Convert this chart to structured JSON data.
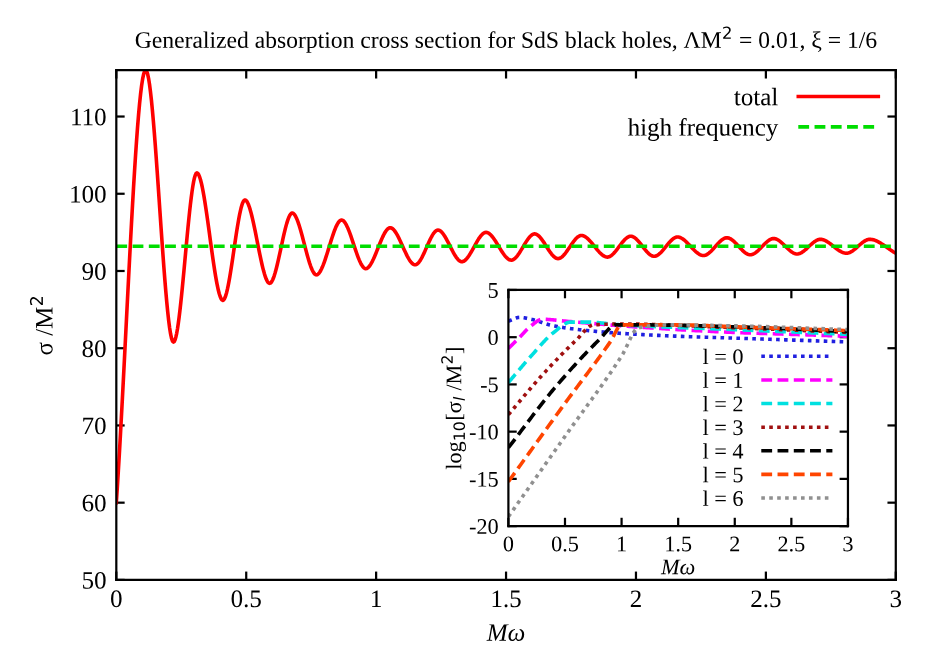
{
  "chart_data": [
    {
      "type": "line",
      "title": "Generalized absorption cross section for SdS black holes, ΛM$^{2}$ = 0.01, ξ = 1/6",
      "xlabel": "Mω",
      "ylabel": "σ /M$^{2}$",
      "xlim": [
        0,
        3
      ],
      "ylim": [
        50,
        116
      ],
      "xticks": [
        0,
        0.5,
        1,
        1.5,
        2,
        2.5,
        3
      ],
      "yticks": [
        50,
        60,
        70,
        80,
        90,
        100,
        110
      ],
      "legend": "top right",
      "grid": false,
      "series": [
        {
          "name": "total",
          "color": "#ff0000",
          "line_style": "solid",
          "x": [
            0,
            0.113,
            0.22,
            0.31,
            0.41,
            0.495,
            0.59,
            0.677,
            0.77,
            0.867,
            0.96,
            1.054,
            1.15,
            1.238,
            1.33,
            1.423,
            1.52,
            1.61,
            1.7,
            1.79,
            1.89,
            1.98,
            2.07,
            2.16,
            2.26,
            2.35,
            2.44,
            2.53,
            2.62,
            2.71,
            2.81,
            2.9,
            3.0
          ],
          "values": [
            60,
            116,
            80.8,
            102.7,
            86.2,
            99.2,
            88.4,
            97.5,
            89.5,
            96.6,
            90.3,
            95.6,
            90.8,
            95.3,
            91.2,
            95.0,
            91.4,
            94.8,
            91.6,
            94.6,
            91.8,
            94.5,
            91.9,
            94.4,
            92.0,
            94.3,
            92.1,
            94.2,
            92.2,
            94.1,
            92.3,
            94.1,
            92.3
          ]
        },
        {
          "name": "high frequency",
          "color": "#00dd00",
          "line_style": "dashed",
          "x": [
            0,
            3
          ],
          "values": [
            93.2,
            93.2
          ]
        }
      ]
    },
    {
      "type": "line",
      "xlabel": "Mω",
      "ylabel": "log$_{10}$[σ$_{l}$ /M$^{2}$]",
      "xlim": [
        0,
        3
      ],
      "ylim": [
        -20,
        5
      ],
      "xticks": [
        0,
        0.5,
        1,
        1.5,
        2,
        2.5,
        3
      ],
      "yticks": [
        -20,
        -15,
        -10,
        -5,
        0,
        5
      ],
      "legend": "bottom right",
      "grid": false,
      "series": [
        {
          "name": "l = 0",
          "color": "#2020e0",
          "line_style": "dotted",
          "x": [
            0,
            0.1,
            0.2,
            0.4,
            0.7,
            1,
            1.5,
            2,
            2.5,
            3
          ],
          "values": [
            1.7,
            2.1,
            1.9,
            1.2,
            0.7,
            0.4,
            0.1,
            -0.1,
            -0.3,
            -0.5
          ]
        },
        {
          "name": "l = 1",
          "color": "#ff00ff",
          "line_style": "dashed",
          "x": [
            0,
            0.1,
            0.2,
            0.3,
            0.5,
            1,
            1.5,
            2,
            2.5,
            3
          ],
          "values": [
            -1.2,
            0,
            1.2,
            1.9,
            1.7,
            1.2,
            0.8,
            0.5,
            0.3,
            0.1
          ]
        },
        {
          "name": "l = 2",
          "color": "#00e0e0",
          "line_style": "dashed",
          "x": [
            0,
            0.2,
            0.4,
            0.55,
            0.7,
            1,
            2,
            3
          ],
          "values": [
            -4.8,
            -2,
            0.5,
            1.6,
            1.6,
            1.3,
            0.8,
            0.3
          ]
        },
        {
          "name": "l = 3",
          "color": "#a01010",
          "line_style": "dotted",
          "x": [
            0,
            0.3,
            0.6,
            0.75,
            1,
            2,
            3
          ],
          "values": [
            -8.2,
            -4,
            -0.3,
            1.3,
            1.4,
            1,
            0.5
          ]
        },
        {
          "name": "l = 4",
          "color": "#000000",
          "line_style": "dashed",
          "x": [
            0,
            0.4,
            0.8,
            0.95,
            1.2,
            2,
            3
          ],
          "values": [
            -11.7,
            -5.5,
            -0.3,
            1.3,
            1.3,
            1.1,
            0.6
          ]
        },
        {
          "name": "l = 5",
          "color": "#ff4500",
          "line_style": "dashed",
          "x": [
            0,
            0.5,
            0.9,
            1.0,
            1.5,
            2,
            3
          ],
          "values": [
            -15.3,
            -7,
            -0.5,
            1.3,
            1.3,
            1.1,
            0.7
          ]
        },
        {
          "name": "l = 6",
          "color": "#909090",
          "line_style": "dotted",
          "x": [
            0,
            0.5,
            1.0,
            1.15,
            1.4,
            2,
            3
          ],
          "values": [
            -19,
            -10.5,
            -2,
            1,
            1.3,
            1.2,
            0.8
          ]
        }
      ]
    }
  ]
}
